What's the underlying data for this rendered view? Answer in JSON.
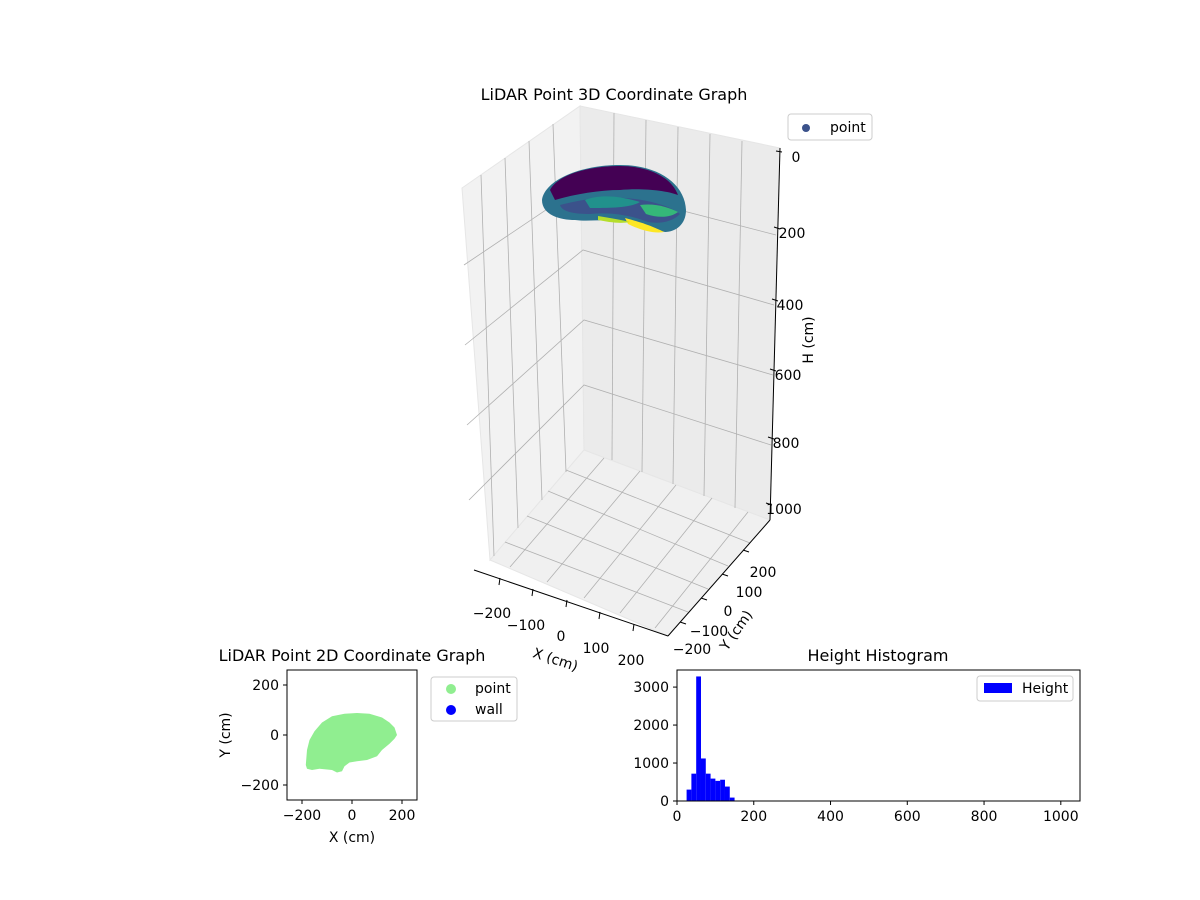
{
  "chart_data": [
    {
      "type": "scatter3d",
      "title": "LiDAR Point 3D Coordinate Graph",
      "xlabel": "X (cm)",
      "ylabel": "Y (cm)",
      "zlabel": "H (cm)",
      "xticks": [
        "−200",
        "−100",
        "0",
        "100",
        "200"
      ],
      "yticks": [
        "−200",
        "−100",
        "0",
        "100",
        "200"
      ],
      "zticks": [
        "0",
        "200",
        "400",
        "600",
        "800",
        "1000"
      ],
      "legend": [
        "point"
      ],
      "legend_position": "top-right",
      "colormap": "viridis",
      "grid": true
    },
    {
      "type": "scatter",
      "title": "LiDAR Point 2D Coordinate Graph",
      "xlabel": "X (cm)",
      "ylabel": "Y (cm)",
      "xlim": [
        -260,
        260
      ],
      "ylim": [
        -260,
        260
      ],
      "xticks": [
        -200,
        0,
        200
      ],
      "yticks": [
        -200,
        0,
        200
      ],
      "tick_labels_x": [
        "−200",
        "0",
        "200"
      ],
      "tick_labels_y": [
        "−200",
        "0",
        "200"
      ],
      "legend": [
        {
          "name": "point",
          "color": "#90ee90"
        },
        {
          "name": "wall",
          "color": "#0000ff"
        }
      ],
      "legend_position": "outside-right",
      "outline": [
        [
          -185,
          -120
        ],
        [
          -180,
          -60
        ],
        [
          -170,
          -20
        ],
        [
          -150,
          15
        ],
        [
          -120,
          50
        ],
        [
          -80,
          75
        ],
        [
          -30,
          85
        ],
        [
          20,
          88
        ],
        [
          70,
          85
        ],
        [
          120,
          70
        ],
        [
          150,
          50
        ],
        [
          170,
          30
        ],
        [
          180,
          0
        ],
        [
          170,
          -15
        ],
        [
          150,
          -35
        ],
        [
          120,
          -60
        ],
        [
          100,
          -85
        ],
        [
          60,
          -100
        ],
        [
          20,
          -105
        ],
        [
          -10,
          -110
        ],
        [
          -30,
          -125
        ],
        [
          -40,
          -145
        ],
        [
          -60,
          -150
        ],
        [
          -80,
          -140
        ],
        [
          -130,
          -135
        ],
        [
          -160,
          -140
        ],
        [
          -180,
          -135
        ]
      ]
    },
    {
      "type": "bar",
      "title": "Height Histogram",
      "xlabel": "",
      "ylabel": "",
      "xlim": [
        0,
        1050
      ],
      "ylim": [
        0,
        3450
      ],
      "xticks": [
        0,
        200,
        400,
        600,
        800,
        1000
      ],
      "yticks": [
        0,
        1000,
        2000,
        3000
      ],
      "bin_width": 12.5,
      "bin_starts": [
        25,
        37.5,
        50,
        62.5,
        75,
        87.5,
        100,
        112.5,
        125,
        137.5
      ],
      "values": [
        300,
        720,
        3280,
        1120,
        720,
        590,
        530,
        560,
        380,
        90
      ],
      "color": "#0000ff",
      "legend": [
        "Height"
      ],
      "legend_position": "top-right"
    }
  ]
}
